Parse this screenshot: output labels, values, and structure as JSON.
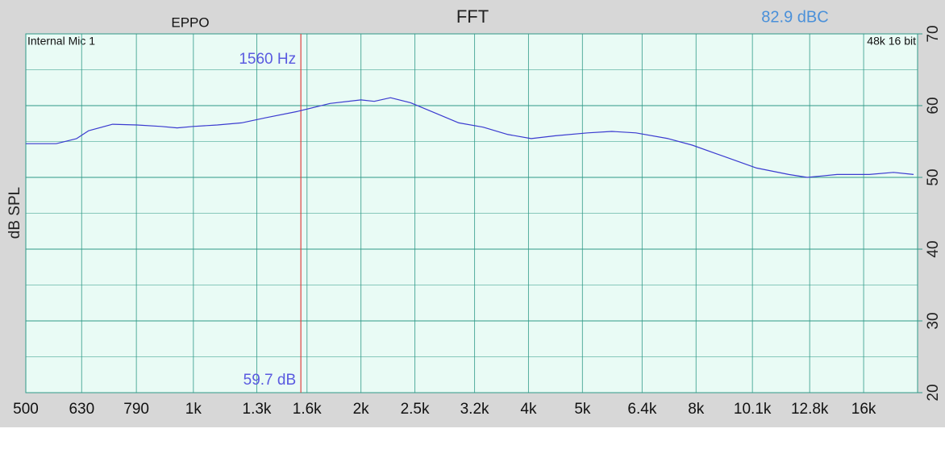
{
  "chart_data": {
    "type": "line",
    "title": "FFT",
    "device": "EPPO",
    "level_readout": "82.9 dBC",
    "input": "Internal Mic 1",
    "format": "48k 16 bit",
    "ylabel": "dB SPL",
    "xscale": "log",
    "grid": true,
    "xlim": [
      500,
      20000
    ],
    "ylim": [
      20,
      70
    ],
    "xticks": [
      500,
      630,
      790,
      {
        "value": 1000,
        "label": "1k"
      },
      {
        "value": 1300,
        "label": "1.3k"
      },
      {
        "value": 1600,
        "label": "1.6k"
      },
      {
        "value": 2000,
        "label": "2k"
      },
      {
        "value": 2500,
        "label": "2.5k"
      },
      {
        "value": 3200,
        "label": "3.2k"
      },
      {
        "value": 4000,
        "label": "4k"
      },
      {
        "value": 5000,
        "label": "5k"
      },
      {
        "value": 6400,
        "label": "6.4k"
      },
      {
        "value": 8000,
        "label": "8k"
      },
      {
        "value": 10100,
        "label": "10.1k"
      },
      {
        "value": 12800,
        "label": "12.8k"
      },
      {
        "value": 16000,
        "label": "16k"
      }
    ],
    "yticks": [
      20,
      30,
      40,
      50,
      60,
      70
    ],
    "yminor": [
      25,
      35,
      45,
      55,
      65
    ],
    "cursor": {
      "x": 1560,
      "x_label": "1560 Hz",
      "y": 59.7,
      "y_label": "59.7 dB",
      "color": "#e04040"
    },
    "x": [
      500,
      567,
      617,
      648,
      716,
      792,
      875,
      935,
      1000,
      1104,
      1220,
      1348,
      1540,
      1760,
      2000,
      2113,
      2260,
      2456,
      2714,
      2998,
      3314,
      3661,
      4045,
      4470,
      5109,
      5645,
      6238,
      7126,
      7874,
      8994,
      10275,
      11738,
      12674,
      14332,
      16378,
      18100,
      19670
    ],
    "series": [
      {
        "color": "#3b3bd0",
        "values": [
          54.7,
          54.7,
          55.4,
          56.5,
          57.4,
          57.3,
          57.1,
          56.9,
          57.1,
          57.3,
          57.6,
          58.3,
          59.2,
          60.3,
          60.8,
          60.6,
          61.1,
          60.4,
          59.0,
          57.6,
          57.0,
          56.0,
          55.4,
          55.8,
          56.2,
          56.4,
          56.2,
          55.4,
          54.5,
          52.9,
          51.3,
          50.4,
          50.0,
          50.4,
          50.4,
          50.7,
          50.4
        ]
      }
    ]
  }
}
